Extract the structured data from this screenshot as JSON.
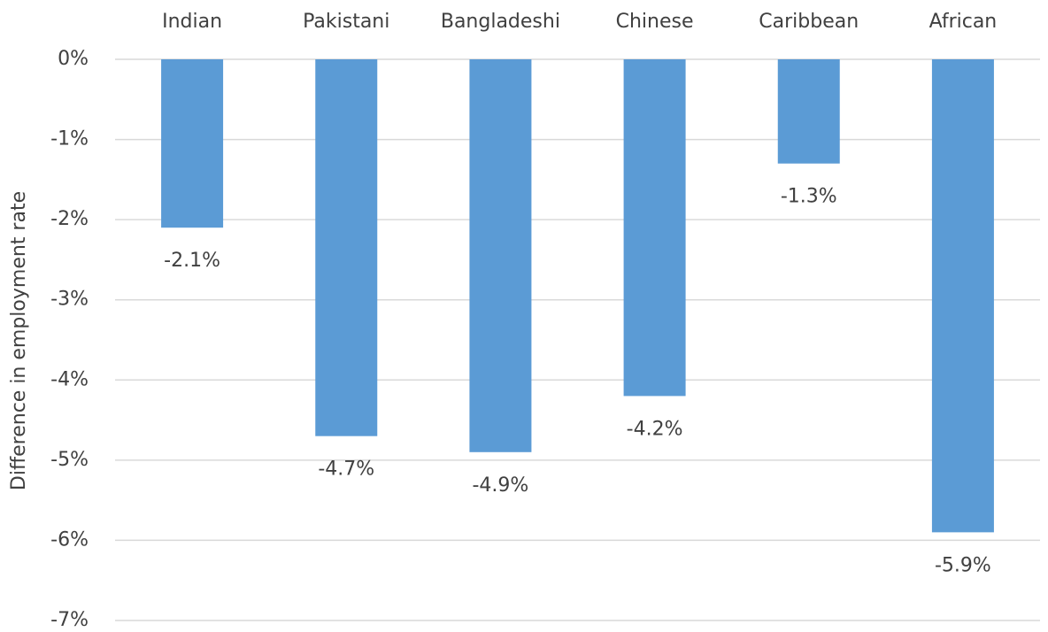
{
  "chart_data": {
    "type": "bar",
    "y_label": "Difference in employment rate",
    "categories": [
      "Indian",
      "Pakistani",
      "Bangladeshi",
      "Chinese",
      "Caribbean",
      "African"
    ],
    "values": [
      -2.1,
      -4.7,
      -4.9,
      -4.2,
      -1.3,
      -5.9
    ],
    "value_labels": [
      "-2.1%",
      "-4.7%",
      "-4.9%",
      "-4.2%",
      "-1.3%",
      "-5.9%"
    ],
    "color": "#5b9bd5",
    "ylim": [
      -7,
      0
    ],
    "yticks": [
      {
        "value": 0,
        "label": "0%"
      },
      {
        "value": -1,
        "label": "-1%"
      },
      {
        "value": -2,
        "label": "-2%"
      },
      {
        "value": -3,
        "label": "-3%"
      },
      {
        "value": -4,
        "label": "-4%"
      },
      {
        "value": -5,
        "label": "-5%"
      },
      {
        "value": -6,
        "label": "-6%"
      },
      {
        "value": -7,
        "label": "-7%"
      }
    ],
    "grid": true
  }
}
